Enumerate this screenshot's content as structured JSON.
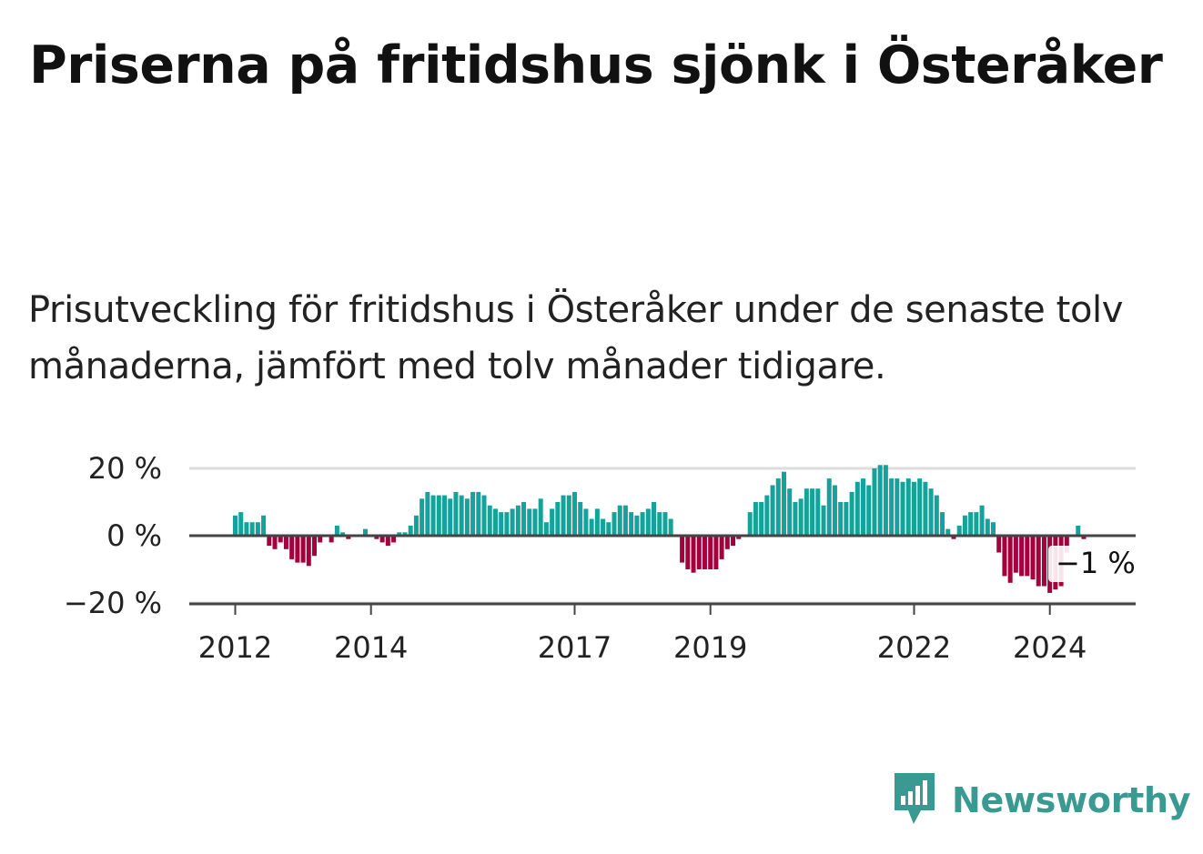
{
  "title": "Priserna på fritidshus sjönk i Österåker",
  "subtitle": "Prisutveckling för fritidshus i Österåker under de senaste tolv månaderna, jämfört med tolv månader tidigare.",
  "brand": {
    "name": "Newsworthy",
    "icon": "newsworthy-logo-icon",
    "color": "#3a9990"
  },
  "chart_data": {
    "type": "bar",
    "positive_color": "#14a39a",
    "negative_color": "#a3003d",
    "ylim": [
      -20,
      20
    ],
    "y_ticks": [
      {
        "value": 20,
        "label": "20 %"
      },
      {
        "value": 0,
        "label": "0 %"
      },
      {
        "value": -20,
        "label": "−20 %"
      }
    ],
    "x_ticks": [
      {
        "value": 2012,
        "label": "2012"
      },
      {
        "value": 2014,
        "label": "2014"
      },
      {
        "value": 2017,
        "label": "2017"
      },
      {
        "value": 2019,
        "label": "2019"
      },
      {
        "value": 2022,
        "label": "2022"
      },
      {
        "value": 2024,
        "label": "2024"
      }
    ],
    "x_start": 2012,
    "step": 0.08333,
    "values": [
      6,
      7,
      4,
      4,
      4,
      6,
      -3,
      -4,
      -2,
      -4,
      -7,
      -8,
      -8,
      -9,
      -6,
      -2,
      0,
      -2,
      3,
      1,
      -1,
      0,
      0,
      2,
      0,
      -1,
      -2,
      -3,
      -2,
      1,
      1,
      3,
      6,
      11,
      13,
      12,
      12,
      12,
      11,
      13,
      12,
      11,
      13,
      13,
      12,
      9,
      8,
      7,
      7,
      8,
      9,
      10,
      8,
      8,
      11,
      4,
      8,
      10,
      12,
      12,
      13,
      10,
      8,
      5,
      8,
      5,
      4,
      7,
      9,
      9,
      7,
      6,
      7,
      8,
      10,
      7,
      7,
      5,
      0,
      -8,
      -10,
      -11,
      -10,
      -10,
      -10,
      -10,
      -7,
      -4,
      -3,
      -1,
      0,
      7,
      10,
      10,
      12,
      15,
      17,
      19,
      14,
      10,
      11,
      14,
      14,
      14,
      9,
      17,
      15,
      10,
      10,
      13,
      16,
      17,
      15,
      20,
      21,
      21,
      17,
      17,
      16,
      17,
      16,
      17,
      16,
      14,
      12,
      7,
      2,
      -1,
      3,
      6,
      7,
      7,
      9,
      5,
      4,
      -5,
      -12,
      -14,
      -11,
      -12,
      -12,
      -13,
      -15,
      -15,
      -17,
      -16,
      -15,
      -5,
      0,
      3,
      -1
    ],
    "annotation": {
      "label": "−1 %"
    }
  }
}
